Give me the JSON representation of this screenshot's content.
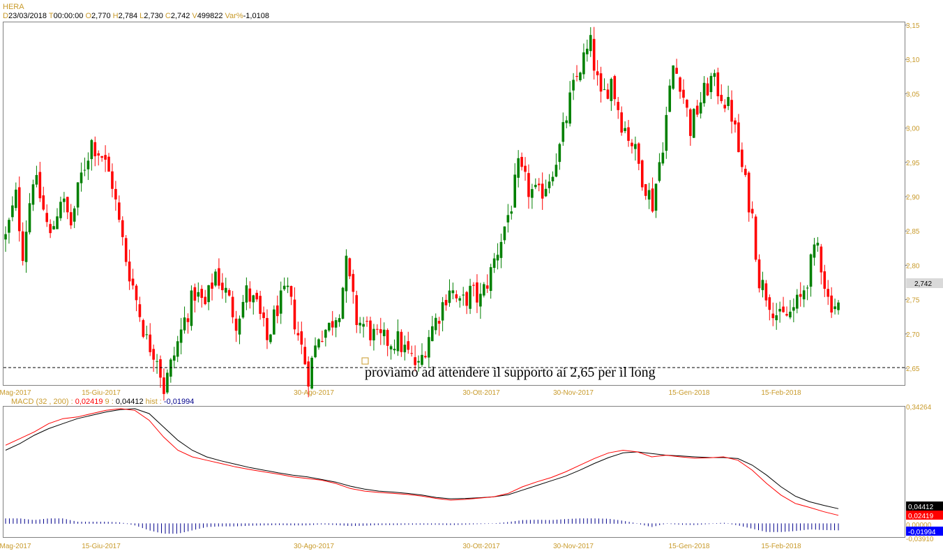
{
  "header": {
    "symbol": "HERA",
    "fields": [
      {
        "key": "D",
        "value": "23/03/2018"
      },
      {
        "key": "T",
        "value": "00:00:00"
      },
      {
        "key": "O",
        "value": "2,770"
      },
      {
        "key": "H",
        "value": "2,784"
      },
      {
        "key": "L",
        "value": "2,730"
      },
      {
        "key": "C",
        "value": "2,742"
      },
      {
        "key": "V",
        "value": "499822"
      },
      {
        "key": "Var%",
        "value": "-1,0108"
      }
    ]
  },
  "macd_header": {
    "name": "MACD",
    "params": "(32 , 200) :",
    "macd_value": "0,02419",
    "signal_label": "9 :",
    "signal_value": "0,04412",
    "hist_label": "hist :",
    "hist_value": "-0,01994"
  },
  "annotation": "proviamo ad attendere il supporto ai 2,65 per il long",
  "colors": {
    "up": "#008000",
    "down": "#ff0000",
    "axis_text": "#c89a2a",
    "macd": "#ff0000",
    "signal": "#000000",
    "hist": "#00008b"
  },
  "chart_data": [
    {
      "type": "candlestick",
      "title": "HERA",
      "y_ticks": [
        "3,15",
        "3,10",
        "3,05",
        "3,00",
        "2,95",
        "2,90",
        "2,85",
        "2,80",
        "2,75",
        "2,70",
        "2,65"
      ],
      "ylim": [
        2.605,
        3.155
      ],
      "x_labels": [
        "Mag-2017",
        "15-Giu-2017",
        "30-Ago-2017",
        "30-Ott-2017",
        "30-Nov-2017",
        "15-Gen-2018",
        "15-Feb-2018"
      ],
      "last_price_label": "2,742",
      "support_level": 2.65,
      "anchors": [
        [
          0,
          2.84
        ],
        [
          3,
          2.9
        ],
        [
          5,
          2.82
        ],
        [
          8,
          2.93
        ],
        [
          10,
          2.9
        ],
        [
          13,
          2.84
        ],
        [
          16,
          2.9
        ],
        [
          19,
          2.86
        ],
        [
          22,
          2.93
        ],
        [
          25,
          2.98
        ],
        [
          28,
          2.96
        ],
        [
          31,
          2.92
        ],
        [
          33,
          2.86
        ],
        [
          35,
          2.81
        ],
        [
          38,
          2.75
        ],
        [
          41,
          2.69
        ],
        [
          44,
          2.67
        ],
        [
          46,
          2.62
        ],
        [
          49,
          2.67
        ],
        [
          52,
          2.72
        ],
        [
          55,
          2.76
        ],
        [
          58,
          2.74
        ],
        [
          61,
          2.79
        ],
        [
          64,
          2.76
        ],
        [
          67,
          2.72
        ],
        [
          70,
          2.76
        ],
        [
          73,
          2.74
        ],
        [
          76,
          2.69
        ],
        [
          79,
          2.74
        ],
        [
          82,
          2.76
        ],
        [
          85,
          2.7
        ],
        [
          88,
          2.64
        ],
        [
          91,
          2.7
        ],
        [
          94,
          2.71
        ],
        [
          97,
          2.74
        ],
        [
          99,
          2.8
        ],
        [
          102,
          2.72
        ],
        [
          105,
          2.71
        ],
        [
          108,
          2.69
        ],
        [
          111,
          2.69
        ],
        [
          114,
          2.69
        ],
        [
          117,
          2.67
        ],
        [
          120,
          2.65
        ],
        [
          123,
          2.7
        ],
        [
          126,
          2.73
        ],
        [
          129,
          2.77
        ],
        [
          132,
          2.74
        ],
        [
          135,
          2.76
        ],
        [
          138,
          2.75
        ],
        [
          141,
          2.79
        ],
        [
          144,
          2.84
        ],
        [
          147,
          2.89
        ],
        [
          149,
          2.94
        ],
        [
          152,
          2.91
        ],
        [
          155,
          2.9
        ],
        [
          158,
          2.93
        ],
        [
          161,
          2.97
        ],
        [
          164,
          3.04
        ],
        [
          167,
          3.09
        ],
        [
          170,
          3.12
        ],
        [
          173,
          3.04
        ],
        [
          176,
          3.07
        ],
        [
          179,
          3.01
        ],
        [
          182,
          2.98
        ],
        [
          185,
          2.93
        ],
        [
          188,
          2.89
        ],
        [
          191,
          2.98
        ],
        [
          194,
          3.09
        ],
        [
          196,
          3.07
        ],
        [
          199,
          3.0
        ],
        [
          202,
          3.04
        ],
        [
          205,
          3.07
        ],
        [
          208,
          3.05
        ],
        [
          211,
          3.02
        ],
        [
          214,
          2.94
        ],
        [
          217,
          2.87
        ],
        [
          219,
          2.78
        ],
        [
          222,
          2.75
        ],
        [
          225,
          2.72
        ],
        [
          228,
          2.73
        ],
        [
          231,
          2.75
        ],
        [
          234,
          2.8
        ],
        [
          236,
          2.83
        ],
        [
          239,
          2.75
        ],
        [
          242,
          2.74
        ]
      ]
    },
    {
      "type": "line",
      "title": "MACD",
      "y_ticks": [
        "0,34264",
        "0,04412",
        "0,02419",
        "0,00000",
        "-0,01994",
        "-0,03910"
      ],
      "ylim": [
        -0.0391,
        0.34264
      ],
      "series": [
        {
          "name": "MACD",
          "values": [
            0.235,
            0.255,
            0.275,
            0.3,
            0.315,
            0.32,
            0.33,
            0.34,
            0.345,
            0.34,
            0.31,
            0.26,
            0.22,
            0.2,
            0.19,
            0.18,
            0.17,
            0.162,
            0.155,
            0.148,
            0.14,
            0.135,
            0.13,
            0.12,
            0.105,
            0.097,
            0.093,
            0.09,
            0.087,
            0.082,
            0.075,
            0.07,
            0.072,
            0.076,
            0.08,
            0.09,
            0.11,
            0.125,
            0.138,
            0.155,
            0.175,
            0.195,
            0.212,
            0.22,
            0.215,
            0.2,
            0.205,
            0.2,
            0.196,
            0.197,
            0.2,
            0.19,
            0.16,
            0.12,
            0.085,
            0.06,
            0.048,
            0.035,
            0.0242
          ]
        },
        {
          "name": "Signal",
          "values": [
            0.22,
            0.24,
            0.265,
            0.285,
            0.3,
            0.315,
            0.325,
            0.335,
            0.342,
            0.345,
            0.33,
            0.29,
            0.25,
            0.22,
            0.2,
            0.188,
            0.178,
            0.168,
            0.16,
            0.152,
            0.145,
            0.14,
            0.132,
            0.124,
            0.112,
            0.103,
            0.097,
            0.094,
            0.09,
            0.085,
            0.078,
            0.074,
            0.075,
            0.077,
            0.08,
            0.086,
            0.1,
            0.114,
            0.128,
            0.142,
            0.16,
            0.18,
            0.198,
            0.212,
            0.215,
            0.21,
            0.205,
            0.203,
            0.2,
            0.198,
            0.198,
            0.195,
            0.175,
            0.145,
            0.11,
            0.082,
            0.065,
            0.054,
            0.0441
          ]
        }
      ],
      "legend": "top-left"
    }
  ]
}
